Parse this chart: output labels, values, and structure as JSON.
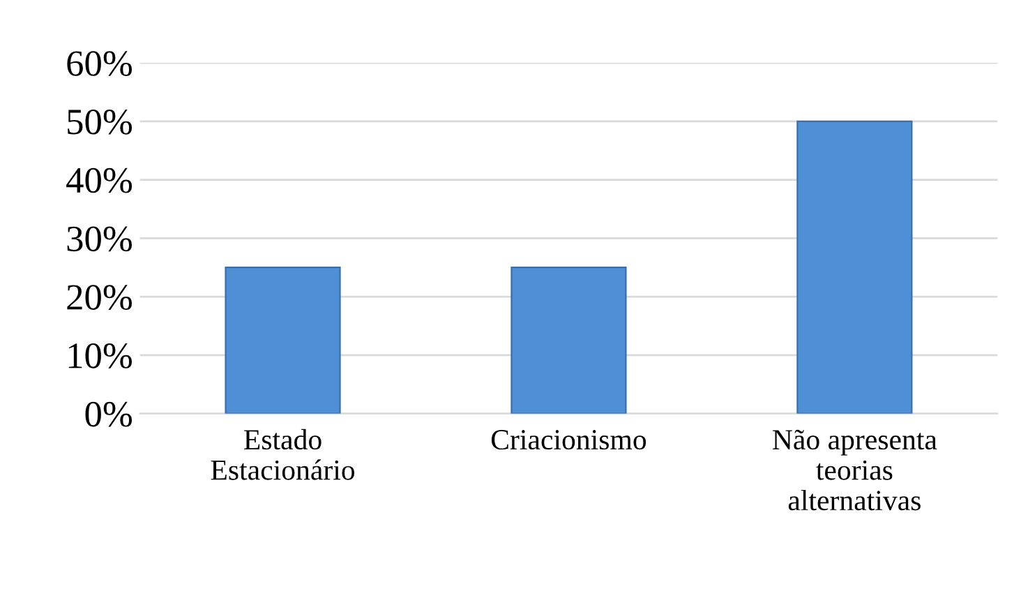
{
  "chart_data": {
    "type": "bar",
    "categories": [
      "Estado\nEstacionário",
      "Criacionismo",
      "Não apresenta\nteorias\nalternativas"
    ],
    "values": [
      25,
      25,
      50
    ],
    "color": "#4f8fd6",
    "ylim": [
      0,
      60
    ],
    "yticks": [
      {
        "value": 0,
        "label": "0%"
      },
      {
        "value": 10,
        "label": "10%"
      },
      {
        "value": 20,
        "label": "20%"
      },
      {
        "value": 30,
        "label": "30%"
      },
      {
        "value": 40,
        "label": "40%"
      },
      {
        "value": 50,
        "label": "50%"
      },
      {
        "value": 60,
        "label": "60%"
      }
    ],
    "grid": "y"
  }
}
